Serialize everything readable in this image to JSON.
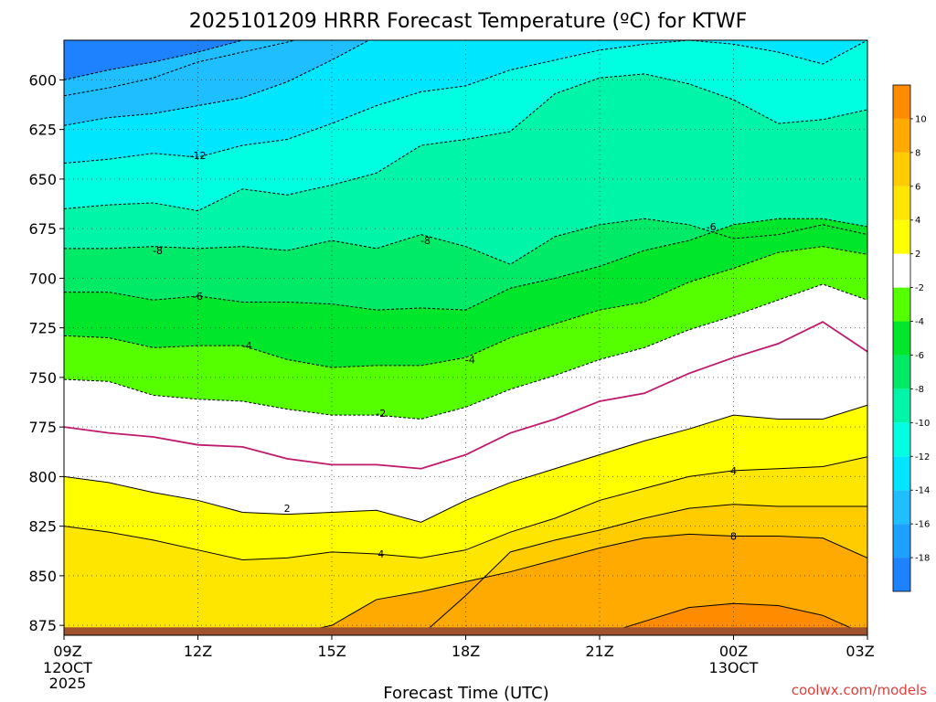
{
  "chart_data": {
    "type": "heatmap",
    "title": "2025101209 HRRR Forecast Temperature (ºC) for KTWF",
    "xlabel": "Forecast Time (UTC)",
    "credit": "coolwx.com/models",
    "x_ticks": [
      {
        "label": "09Z",
        "date1": "12OCT",
        "date2": "2025",
        "hour": 0
      },
      {
        "label": "12Z",
        "hour": 3
      },
      {
        "label": "15Z",
        "hour": 6
      },
      {
        "label": "18Z",
        "hour": 9
      },
      {
        "label": "21Z",
        "hour": 12
      },
      {
        "label": "00Z",
        "date1": "13OCT",
        "hour": 15
      },
      {
        "label": "03Z",
        "hour": 18
      }
    ],
    "xlim_hours": [
      0,
      18
    ],
    "y_ticks": [
      600,
      625,
      650,
      675,
      700,
      725,
      750,
      775,
      800,
      825,
      850,
      875
    ],
    "ylim_hpa": [
      580,
      880
    ],
    "surface_pressure_hpa": 876,
    "colorbar": {
      "levels": [
        -20,
        -18,
        -16,
        -14,
        -12,
        -10,
        -8,
        -6,
        -4,
        -2,
        2,
        4,
        6,
        8,
        10,
        12
      ],
      "tick_labels": [
        -18,
        -16,
        -14,
        -12,
        -10,
        -8,
        -6,
        -4,
        -2,
        2,
        4,
        6,
        8,
        10
      ],
      "colors": [
        "#1e82ff",
        "#1ea0ff",
        "#1ebeff",
        "#00e6ff",
        "#00ffe0",
        "#00f5a8",
        "#00ea68",
        "#00e62a",
        "#55ff00",
        "#ffffff",
        "#ffff00",
        "#ffe600",
        "#ffcc00",
        "#ffaa00",
        "#ff8c00"
      ]
    },
    "surface_color": "#a0522d",
    "freezing_line_color": "#c0186c",
    "hours": [
      0,
      1,
      2,
      3,
      4,
      5,
      6,
      7,
      8,
      9,
      10,
      11,
      12,
      13,
      14,
      15,
      16,
      17,
      18
    ],
    "isotherms": [
      {
        "value": -18,
        "pressure": [
          608,
          604,
          599,
          591,
          586,
          581,
          575,
          575,
          575,
          575,
          575,
          575,
          575,
          575,
          575,
          575,
          575,
          575,
          575
        ]
      },
      {
        "value": -16,
        "pressure": [
          600,
          595,
          591,
          586,
          580,
          575,
          575,
          575,
          575,
          575,
          575,
          575,
          575,
          575,
          575,
          575,
          575,
          575,
          575
        ]
      },
      {
        "value": -14,
        "pressure": [
          623,
          619,
          617,
          613,
          609,
          601,
          590,
          578,
          575,
          575,
          575,
          575,
          575,
          575,
          575,
          575,
          575,
          575,
          575
        ]
      },
      {
        "value": -12,
        "pressure": [
          642,
          640,
          637,
          639,
          633,
          630,
          622,
          613,
          606,
          603,
          595,
          590,
          585,
          582,
          580,
          582,
          586,
          592,
          580
        ]
      },
      {
        "value": -10,
        "pressure": [
          665,
          663,
          662,
          666,
          655,
          658,
          653,
          647,
          633,
          630,
          626,
          607,
          599,
          597,
          602,
          610,
          622,
          620,
          615
        ]
      },
      {
        "value": -8,
        "pressure": [
          685,
          685,
          684,
          685,
          684,
          686,
          681,
          685,
          678,
          684,
          693,
          679,
          673,
          670,
          673,
          680,
          678,
          673,
          678
        ]
      },
      {
        "value": -6,
        "pressure": [
          707,
          707,
          711,
          709,
          712,
          712,
          713,
          716,
          715,
          716,
          705,
          700,
          694,
          686,
          681,
          673,
          670,
          670,
          674
        ]
      },
      {
        "value": -4,
        "pressure": [
          729,
          730,
          735,
          734,
          734,
          741,
          745,
          744,
          744,
          740,
          730,
          723,
          716,
          712,
          702,
          695,
          687,
          684,
          688
        ]
      },
      {
        "value": -2,
        "pressure": [
          751,
          752,
          759,
          761,
          762,
          766,
          769,
          769,
          771,
          765,
          756,
          749,
          741,
          735,
          726,
          719,
          711,
          703,
          711
        ]
      },
      {
        "value": 0,
        "pressure": [
          775,
          778,
          780,
          784,
          785,
          791,
          794,
          794,
          796,
          789,
          778,
          771,
          762,
          758,
          748,
          740,
          733,
          722,
          737
        ]
      },
      {
        "value": 2,
        "pressure": [
          800,
          803,
          808,
          812,
          818,
          819,
          818,
          817,
          823,
          812,
          803,
          796,
          789,
          782,
          776,
          769,
          771,
          771,
          764
        ]
      },
      {
        "value": 4,
        "pressure": [
          825,
          828,
          832,
          837,
          842,
          841,
          838,
          839,
          841,
          837,
          828,
          821,
          812,
          806,
          800,
          797,
          796,
          795,
          790
        ]
      },
      {
        "value": 6,
        "pressure": [
          880,
          880,
          880,
          880,
          880,
          880,
          880,
          880,
          880,
          860,
          838,
          832,
          827,
          821,
          816,
          814,
          815,
          815,
          815
        ]
      },
      {
        "value": 8,
        "pressure": [
          880,
          880,
          880,
          880,
          880,
          880,
          875,
          862,
          858,
          853,
          848,
          842,
          836,
          831,
          829,
          830,
          830,
          831,
          841
        ]
      },
      {
        "value": 10,
        "pressure": [
          880,
          880,
          880,
          880,
          880,
          880,
          880,
          880,
          880,
          880,
          880,
          880,
          880,
          873,
          866,
          864,
          865,
          870,
          880
        ]
      }
    ],
    "contour_labels": [
      {
        "text": "-12",
        "hour": 3.0,
        "pressure": 638
      },
      {
        "text": "-8",
        "hour": 2.1,
        "pressure": 686
      },
      {
        "text": "-8",
        "hour": 8.1,
        "pressure": 681
      },
      {
        "text": "-6",
        "hour": 3.0,
        "pressure": 709
      },
      {
        "text": "-6",
        "hour": 14.5,
        "pressure": 674
      },
      {
        "text": "-4",
        "hour": 4.1,
        "pressure": 734
      },
      {
        "text": "-4",
        "hour": 9.1,
        "pressure": 741
      },
      {
        "text": "-2",
        "hour": 7.1,
        "pressure": 768
      },
      {
        "text": "2",
        "hour": 5.0,
        "pressure": 816
      },
      {
        "text": "4",
        "hour": 7.1,
        "pressure": 839
      },
      {
        "text": "4",
        "hour": 15.0,
        "pressure": 797
      },
      {
        "text": "8",
        "hour": 15.0,
        "pressure": 830
      }
    ]
  }
}
